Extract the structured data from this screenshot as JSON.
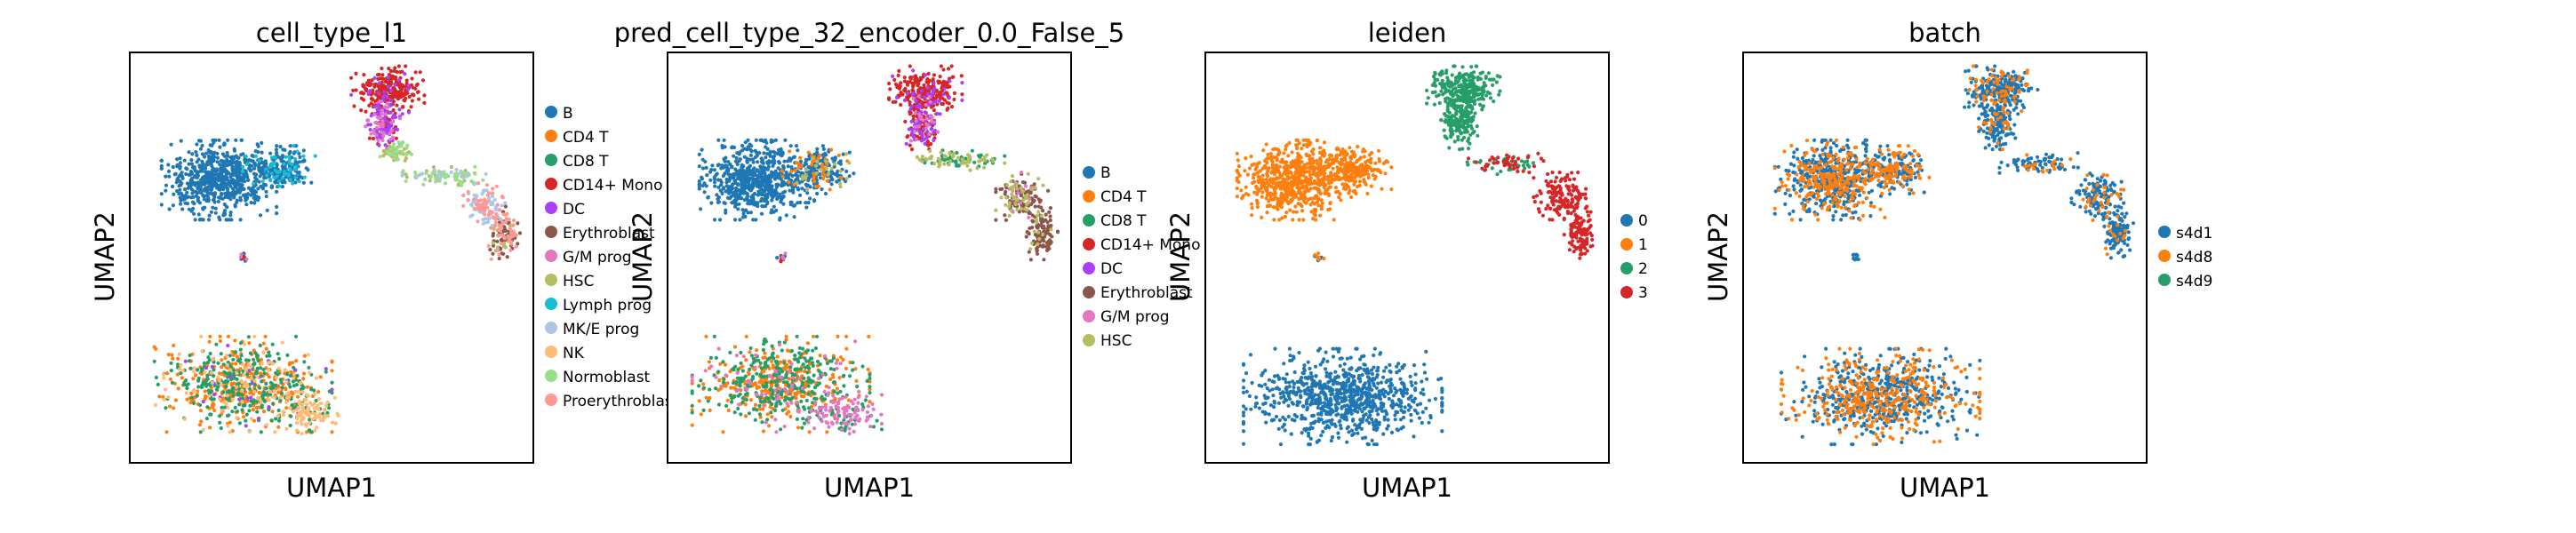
{
  "chart_data": [
    {
      "type": "scatter",
      "title": "cell_type_l1",
      "xlabel": "UMAP1",
      "ylabel": "UMAP2",
      "legend_position": "right",
      "grid": false,
      "series": [
        {
          "name": "B",
          "color": "#1f77b4"
        },
        {
          "name": "CD4 T",
          "color": "#ff7f0e"
        },
        {
          "name": "CD8 T",
          "color": "#279e68"
        },
        {
          "name": "CD14+ Mono",
          "color": "#d62728"
        },
        {
          "name": "DC",
          "color": "#aa40fc"
        },
        {
          "name": "Erythroblast",
          "color": "#8c564b"
        },
        {
          "name": "G/M prog",
          "color": "#e377c2"
        },
        {
          "name": "HSC",
          "color": "#b5bd61"
        },
        {
          "name": "Lymph prog",
          "color": "#17becf"
        },
        {
          "name": "MK/E prog",
          "color": "#aec7e8"
        },
        {
          "name": "NK",
          "color": "#ffbb78"
        },
        {
          "name": "Normoblast",
          "color": "#98df8a"
        },
        {
          "name": "Proerythroblast",
          "color": "#ff9896"
        }
      ]
    },
    {
      "type": "scatter",
      "title": "pred_cell_type_32_encoder_0.0_False_5",
      "xlabel": "UMAP1",
      "ylabel": "UMAP2",
      "legend_position": "right",
      "grid": false,
      "series": [
        {
          "name": "B",
          "color": "#1f77b4"
        },
        {
          "name": "CD4 T",
          "color": "#ff7f0e"
        },
        {
          "name": "CD8 T",
          "color": "#279e68"
        },
        {
          "name": "CD14+ Mono",
          "color": "#d62728"
        },
        {
          "name": "DC",
          "color": "#aa40fc"
        },
        {
          "name": "Erythroblast",
          "color": "#8c564b"
        },
        {
          "name": "G/M prog",
          "color": "#e377c2"
        },
        {
          "name": "HSC",
          "color": "#b5bd61"
        }
      ]
    },
    {
      "type": "scatter",
      "title": "leiden",
      "xlabel": "UMAP1",
      "ylabel": "UMAP2",
      "legend_position": "right",
      "grid": false,
      "series": [
        {
          "name": "0",
          "color": "#1f77b4"
        },
        {
          "name": "1",
          "color": "#ff7f0e"
        },
        {
          "name": "2",
          "color": "#279e68"
        },
        {
          "name": "3",
          "color": "#d62728"
        }
      ]
    },
    {
      "type": "scatter",
      "title": "batch",
      "xlabel": "UMAP1",
      "ylabel": "UMAP2",
      "legend_position": "right",
      "grid": false,
      "series": [
        {
          "name": "s4d1",
          "color": "#1f77b4"
        },
        {
          "name": "s4d8",
          "color": "#ff7f0e"
        },
        {
          "name": "s4d9",
          "color": "#279e68"
        }
      ]
    }
  ]
}
